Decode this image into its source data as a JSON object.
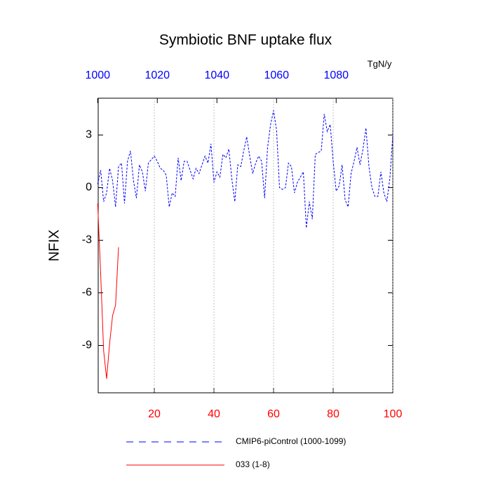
{
  "chart_data": {
    "type": "line",
    "title": "Symbiotic BNF uptake flux",
    "ylabel": "NFIX",
    "units_label": "TgN/y",
    "xlim": [
      1,
      100
    ],
    "xticks": [
      20,
      40,
      60,
      80,
      100
    ],
    "xtick_color": "#ff0000",
    "x2lim": [
      1000,
      1099
    ],
    "x2ticks": [
      1000,
      1020,
      1040,
      1060,
      1080
    ],
    "x2tick_color": "#0000ff",
    "ylim": [
      -11.7,
      5.1
    ],
    "yticks": [
      -9,
      -6,
      -3,
      0,
      3
    ],
    "grid": true,
    "series": [
      {
        "name": "CMIP6-piControl (1000-1099)",
        "color": "#0000ff",
        "style": "dashed",
        "x": [
          1,
          2,
          3,
          4,
          5,
          6,
          7,
          8,
          9,
          10,
          11,
          12,
          13,
          14,
          15,
          16,
          17,
          18,
          19,
          20,
          21,
          22,
          23,
          24,
          25,
          26,
          27,
          28,
          29,
          30,
          31,
          32,
          33,
          34,
          35,
          36,
          37,
          38,
          39,
          40,
          41,
          42,
          43,
          44,
          45,
          46,
          47,
          48,
          49,
          50,
          51,
          52,
          53,
          54,
          55,
          56,
          57,
          58,
          59,
          60,
          61,
          62,
          63,
          64,
          65,
          66,
          67,
          68,
          69,
          70,
          71,
          72,
          73,
          74,
          75,
          76,
          77,
          78,
          79,
          80,
          81,
          82,
          83,
          84,
          85,
          86,
          87,
          88,
          89,
          90,
          91,
          92,
          93,
          94,
          95,
          96,
          97,
          98,
          99,
          100
        ],
        "values": [
          0.2,
          1.0,
          -0.8,
          -0.3,
          1.1,
          0.4,
          -1.1,
          1.2,
          1.4,
          -0.9,
          1.5,
          2.1,
          0.4,
          -0.6,
          1.3,
          0.9,
          -0.2,
          1.4,
          1.6,
          1.8,
          1.5,
          1.1,
          1.0,
          0.7,
          -1.1,
          -0.3,
          -0.5,
          1.7,
          0.4,
          1.5,
          1.5,
          1.0,
          0.5,
          1.1,
          0.8,
          1.3,
          1.8,
          1.4,
          2.5,
          0.3,
          0.9,
          0.6,
          1.9,
          1.7,
          2.2,
          0.5,
          -0.8,
          1.3,
          1.2,
          2.1,
          2.9,
          1.8,
          0.8,
          1.4,
          1.8,
          1.5,
          -0.6,
          2.3,
          3.6,
          4.4,
          3.3,
          0.0,
          -0.1,
          0.0,
          1.4,
          1.2,
          -0.3,
          0.3,
          0.6,
          0.9,
          -2.3,
          -0.8,
          -1.8,
          1.9,
          2.0,
          2.1,
          4.2,
          3.2,
          3.6,
          1.5,
          -0.2,
          0.1,
          1.3,
          -0.7,
          -1.1,
          0.8,
          1.5,
          2.3,
          1.3,
          2.2,
          3.4,
          1.2,
          0.0,
          -0.5,
          -0.5,
          0.9,
          -0.3,
          -0.8,
          0.5,
          3.0
        ]
      },
      {
        "name": "033 (1-8)",
        "color": "#ff0000",
        "style": "solid",
        "x": [
          1,
          2,
          3,
          4,
          5,
          6,
          7,
          8
        ],
        "values": [
          -0.9,
          -4.9,
          -9.3,
          -10.9,
          -8.9,
          -7.3,
          -6.7,
          -3.4
        ]
      }
    ]
  }
}
